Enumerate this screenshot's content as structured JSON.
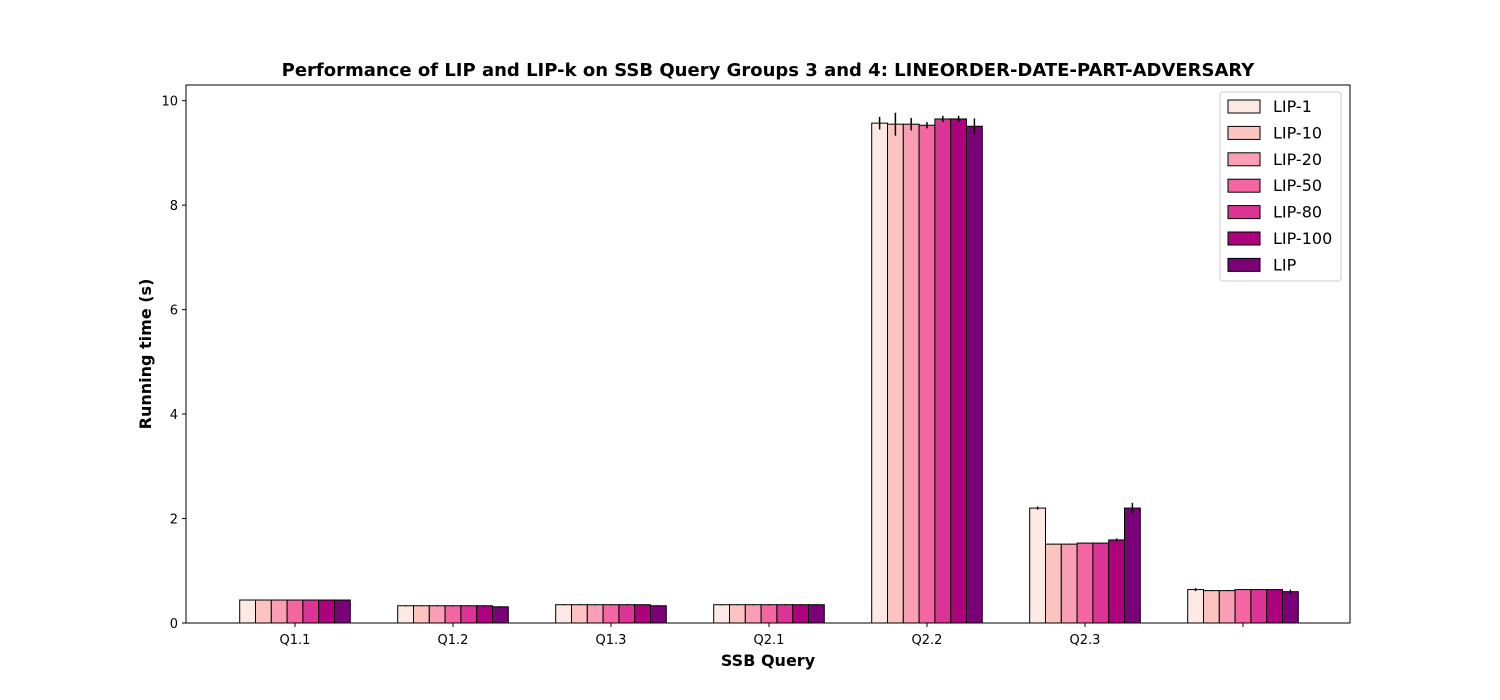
{
  "chart_data": {
    "type": "bar",
    "title": "Performance of LIP and LIP-k on SSB Query Groups 3 and 4: LINEORDER-DATE-PART-ADVERSARY",
    "xlabel": "SSB Query",
    "ylabel": "Running time (s)",
    "ylim": [
      0,
      10.3
    ],
    "yticks": [
      0,
      2,
      4,
      6,
      8,
      10
    ],
    "grid": false,
    "legend_position": "top-right",
    "categories": [
      "Q1.1",
      "Q1.2",
      "Q1.3",
      "Q2.1",
      "Q2.2",
      "Q2.3",
      ""
    ],
    "series": [
      {
        "name": "LIP-1",
        "color": "#fde9e4",
        "values": [
          0.44,
          0.33,
          0.35,
          0.35,
          9.57,
          2.2,
          0.64
        ],
        "errors": [
          0.01,
          0.01,
          0.01,
          0.01,
          0.12,
          0.03,
          0.03
        ]
      },
      {
        "name": "LIP-10",
        "color": "#fbc4c0",
        "values": [
          0.44,
          0.33,
          0.35,
          0.35,
          9.55,
          1.51,
          0.62
        ],
        "errors": [
          0.01,
          0.01,
          0.01,
          0.01,
          0.22,
          0.01,
          0.01
        ]
      },
      {
        "name": "LIP-20",
        "color": "#f89fb5",
        "values": [
          0.44,
          0.33,
          0.35,
          0.35,
          9.55,
          1.51,
          0.62
        ],
        "errors": [
          0.01,
          0.01,
          0.01,
          0.01,
          0.12,
          0.01,
          0.01
        ]
      },
      {
        "name": "LIP-50",
        "color": "#f466a1",
        "values": [
          0.44,
          0.33,
          0.35,
          0.35,
          9.53,
          1.53,
          0.64
        ],
        "errors": [
          0.01,
          0.01,
          0.01,
          0.01,
          0.06,
          0.01,
          0.01
        ]
      },
      {
        "name": "LIP-80",
        "color": "#dc3496",
        "values": [
          0.44,
          0.33,
          0.35,
          0.35,
          9.65,
          1.53,
          0.64
        ],
        "errors": [
          0.01,
          0.01,
          0.01,
          0.01,
          0.06,
          0.01,
          0.01
        ]
      },
      {
        "name": "LIP-100",
        "color": "#ad017e",
        "values": [
          0.44,
          0.33,
          0.35,
          0.35,
          9.65,
          1.59,
          0.64
        ],
        "errors": [
          0.01,
          0.01,
          0.01,
          0.01,
          0.06,
          0.03,
          0.01
        ]
      },
      {
        "name": "LIP",
        "color": "#7a0177",
        "values": [
          0.44,
          0.31,
          0.33,
          0.35,
          9.51,
          2.2,
          0.6
        ],
        "errors": [
          0.01,
          0.01,
          0.01,
          0.01,
          0.15,
          0.1,
          0.04
        ]
      }
    ]
  }
}
